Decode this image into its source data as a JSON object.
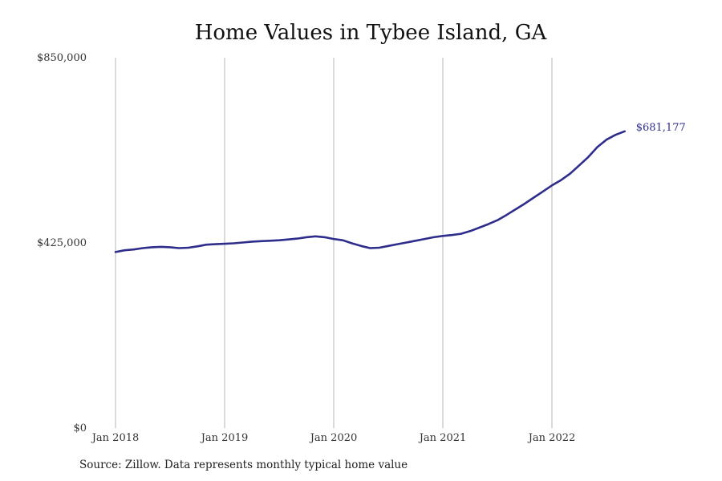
{
  "chart_data": {
    "type": "line",
    "title": "Home Values in Tybee Island, GA",
    "xlabel": "",
    "ylabel": "",
    "ylim": [
      0,
      850000
    ],
    "y_ticks": [
      {
        "value": 0,
        "label": "$0"
      },
      {
        "value": 425000,
        "label": "$425,000"
      },
      {
        "value": 850000,
        "label": "$850,000"
      }
    ],
    "x_ticks": [
      {
        "value": 2018.0,
        "label": "Jan 2018"
      },
      {
        "value": 2019.0,
        "label": "Jan 2019"
      },
      {
        "value": 2020.0,
        "label": "Jan 2020"
      },
      {
        "value": 2021.0,
        "label": "Jan 2021"
      },
      {
        "value": 2022.0,
        "label": "Jan 2022"
      }
    ],
    "xlim": [
      2018.0,
      2022.67
    ],
    "grid": {
      "vertical": true,
      "horizontal": false
    },
    "line_color": "#2e2d8c",
    "end_label": "$681,177",
    "series": [
      {
        "x": [
          2018.0,
          2018.083,
          2018.167,
          2018.25,
          2018.333,
          2018.417,
          2018.5,
          2018.583,
          2018.667,
          2018.75,
          2018.833,
          2018.917,
          2019.0,
          2019.083,
          2019.167,
          2019.25,
          2019.333,
          2019.417,
          2019.5,
          2019.583,
          2019.667,
          2019.75,
          2019.833,
          2019.917,
          2020.0,
          2020.083,
          2020.167,
          2020.25,
          2020.333,
          2020.417,
          2020.5,
          2020.583,
          2020.667,
          2020.75,
          2020.833,
          2020.917,
          2021.0,
          2021.083,
          2021.167,
          2021.25,
          2021.333,
          2021.417,
          2021.5,
          2021.583,
          2021.667,
          2021.75,
          2021.833,
          2021.917,
          2022.0,
          2022.083,
          2022.167,
          2022.25,
          2022.333,
          2022.417,
          2022.5,
          2022.583,
          2022.667
        ],
        "values": [
          404000,
          408000,
          410000,
          413000,
          415000,
          416000,
          415000,
          413000,
          414000,
          417000,
          421000,
          422000,
          423000,
          424000,
          426000,
          428000,
          429000,
          430000,
          431000,
          433000,
          435000,
          438000,
          440000,
          438000,
          434000,
          431000,
          424000,
          418000,
          413000,
          414000,
          418000,
          422000,
          426000,
          430000,
          434000,
          438000,
          441000,
          443000,
          446000,
          452000,
          460000,
          468000,
          477000,
          489000,
          502000,
          515000,
          529000,
          543000,
          557000,
          569000,
          584000,
          603000,
          622000,
          645000,
          662000,
          673000,
          681177
        ]
      }
    ]
  },
  "source_note": "Source: Zillow. Data represents monthly typical home value"
}
